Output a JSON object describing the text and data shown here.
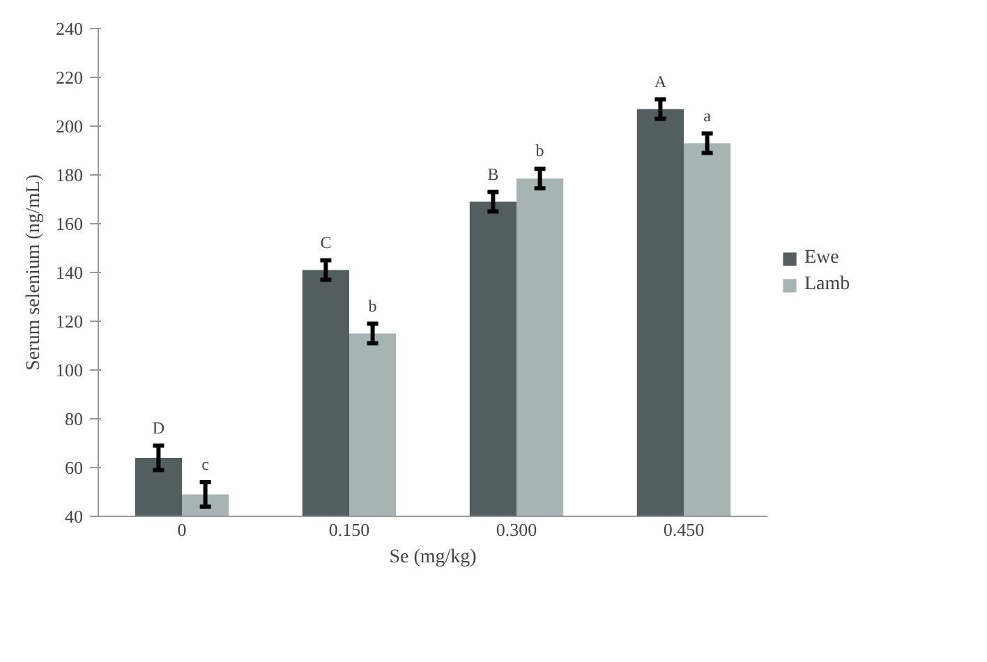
{
  "chart_data": {
    "type": "bar",
    "xlabel": "Se (mg/kg)",
    "ylabel": "Serum selenium (ng/mL)",
    "categories": [
      "0",
      "0.150",
      "0.300",
      "0.450"
    ],
    "series": [
      {
        "name": "Ewe",
        "color": "#525e5f",
        "values": [
          64,
          141,
          169,
          207
        ],
        "errors": [
          5,
          4,
          4,
          4
        ],
        "value_labels": [
          "D",
          "C",
          "B",
          "A"
        ]
      },
      {
        "name": "Lamb",
        "color": "#a7b4b4",
        "values": [
          49,
          115,
          178.5,
          193
        ],
        "errors": [
          5,
          4,
          4,
          4
        ],
        "value_labels": [
          "c",
          "b",
          "b",
          "a"
        ]
      }
    ],
    "ylim": [
      40,
      240
    ],
    "yticks": [
      40,
      60,
      80,
      100,
      120,
      140,
      160,
      180,
      200,
      220,
      240
    ],
    "grid": false,
    "legend": "right"
  }
}
